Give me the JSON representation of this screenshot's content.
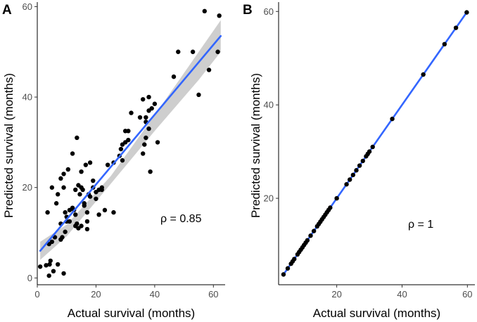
{
  "chart_data": [
    {
      "panel": "A",
      "type": "scatter",
      "xlabel": "Actual survival (months)",
      "ylabel": "Predicted survival (months)",
      "xlim": [
        0,
        64
      ],
      "ylim": [
        -1.5,
        61
      ],
      "xticks": [
        "0",
        "20",
        "40",
        "60"
      ],
      "yticks": [
        "0",
        "20",
        "40",
        "60"
      ],
      "annotation": "ρ = 0.85",
      "series_color": "#3366ff",
      "ribbon_color": "#bdbdbd",
      "fit": {
        "x1": 1,
        "y1": 6,
        "x2": 62.5,
        "y2": 53.5
      },
      "ci_upper": [
        [
          1,
          8
        ],
        [
          10,
          11.8
        ],
        [
          25,
          22.5
        ],
        [
          40,
          36
        ],
        [
          55,
          50
        ],
        [
          62.5,
          57
        ]
      ],
      "ci_lower": [
        [
          1,
          4
        ],
        [
          10,
          9.2
        ],
        [
          25,
          20.8
        ],
        [
          40,
          32.5
        ],
        [
          55,
          43.8
        ],
        [
          62.5,
          50
        ]
      ],
      "points": [
        [
          1,
          2.5
        ],
        [
          3,
          2.8
        ],
        [
          3.5,
          14.5
        ],
        [
          4,
          0.5
        ],
        [
          4,
          7.5
        ],
        [
          4.2,
          3
        ],
        [
          4.5,
          3.8
        ],
        [
          5,
          20
        ],
        [
          5,
          8
        ],
        [
          6,
          9
        ],
        [
          5.5,
          1.5
        ],
        [
          6.5,
          16.5
        ],
        [
          7,
          18.5
        ],
        [
          7,
          3
        ],
        [
          8,
          12
        ],
        [
          8,
          22
        ],
        [
          8,
          8.5
        ],
        [
          8.5,
          9
        ],
        [
          9,
          1
        ],
        [
          9,
          20
        ],
        [
          9,
          23
        ],
        [
          9.5,
          14.5
        ],
        [
          9.5,
          10.2
        ],
        [
          10,
          12.5
        ],
        [
          10,
          13.5
        ],
        [
          10.5,
          24
        ],
        [
          11,
          15
        ],
        [
          11,
          12.5
        ],
        [
          12,
          27.5
        ],
        [
          12,
          15.5
        ],
        [
          12.5,
          15
        ],
        [
          13,
          19.5
        ],
        [
          13,
          11.5
        ],
        [
          13,
          14
        ],
        [
          13.5,
          31
        ],
        [
          13.5,
          12
        ],
        [
          14,
          20.5
        ],
        [
          14,
          11
        ],
        [
          14.5,
          18.5
        ],
        [
          15,
          23.5
        ],
        [
          15,
          20
        ],
        [
          15,
          11.5
        ],
        [
          15.5,
          19.5
        ],
        [
          16,
          16.5
        ],
        [
          16,
          16
        ],
        [
          16.5,
          25
        ],
        [
          17,
          12.5
        ],
        [
          17,
          10.8
        ],
        [
          17,
          14.5
        ],
        [
          17.5,
          18.5
        ],
        [
          18,
          25.5
        ],
        [
          18,
          18
        ],
        [
          19,
          21.5
        ],
        [
          19,
          20
        ],
        [
          20,
          17.5
        ],
        [
          20,
          19
        ],
        [
          21,
          19.5
        ],
        [
          21,
          14
        ],
        [
          22,
          20
        ],
        [
          22,
          19.5
        ],
        [
          23,
          15
        ],
        [
          24,
          25
        ],
        [
          26,
          14.5
        ],
        [
          26,
          25.5
        ],
        [
          28,
          27
        ],
        [
          28.5,
          28.5
        ],
        [
          29,
          29.5
        ],
        [
          29,
          26
        ],
        [
          30,
          32.5
        ],
        [
          30,
          30
        ],
        [
          31,
          32.5
        ],
        [
          31,
          30.5
        ],
        [
          32,
          36.5
        ],
        [
          35,
          35.5
        ],
        [
          36,
          39.5
        ],
        [
          36,
          27.5
        ],
        [
          36.5,
          29.5
        ],
        [
          37,
          31
        ],
        [
          37,
          34.5
        ],
        [
          37,
          35.5
        ],
        [
          38,
          40
        ],
        [
          38,
          37
        ],
        [
          38,
          33
        ],
        [
          38.5,
          23.5
        ],
        [
          39,
          37.5
        ],
        [
          40,
          38.5
        ],
        [
          41,
          30
        ],
        [
          46.5,
          44.5
        ],
        [
          48,
          50
        ],
        [
          53,
          50
        ],
        [
          55,
          40.5
        ],
        [
          57,
          59
        ],
        [
          58.5,
          46
        ],
        [
          61.5,
          50
        ],
        [
          62,
          58
        ]
      ]
    },
    {
      "panel": "B",
      "type": "scatter",
      "xlabel": "Actual survival (months)",
      "ylabel": "Predicted survival (months)",
      "xlim": [
        2.2,
        62.3
      ],
      "ylim": [
        1.5,
        62
      ],
      "xticks": [
        "20",
        "40",
        "60"
      ],
      "yticks": [
        "20",
        "40",
        "60"
      ],
      "annotation": "ρ = 1",
      "series_color": "#3366ff",
      "fit": {
        "x1": 3.7,
        "y1": 3.7,
        "x2": 59.8,
        "y2": 59.8
      },
      "points": [
        [
          3.7,
          3.7
        ],
        [
          5,
          5
        ],
        [
          6,
          6
        ],
        [
          6.5,
          6.5
        ],
        [
          7,
          7
        ],
        [
          8,
          8
        ],
        [
          8.5,
          8.5
        ],
        [
          9,
          9
        ],
        [
          9.5,
          9.5
        ],
        [
          10,
          10
        ],
        [
          10.5,
          10.5
        ],
        [
          11,
          11
        ],
        [
          12,
          12
        ],
        [
          13,
          13
        ],
        [
          14,
          14
        ],
        [
          14.5,
          14.5
        ],
        [
          15,
          15
        ],
        [
          15.5,
          15.5
        ],
        [
          16,
          16
        ],
        [
          16.5,
          16.5
        ],
        [
          17,
          17
        ],
        [
          17.5,
          17.5
        ],
        [
          18,
          18
        ],
        [
          20,
          20
        ],
        [
          23,
          23
        ],
        [
          24,
          24
        ],
        [
          25,
          25
        ],
        [
          26,
          26
        ],
        [
          27,
          27
        ],
        [
          28,
          28
        ],
        [
          29,
          29
        ],
        [
          29.5,
          29.5
        ],
        [
          30,
          30
        ],
        [
          31,
          31
        ],
        [
          37,
          37
        ],
        [
          46.5,
          46.5
        ],
        [
          53,
          53
        ],
        [
          56.5,
          56.5
        ],
        [
          59.8,
          59.8
        ]
      ]
    }
  ]
}
